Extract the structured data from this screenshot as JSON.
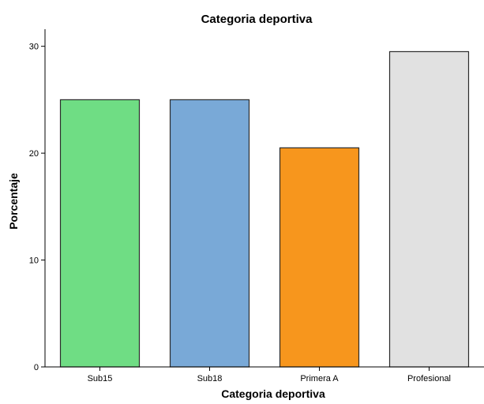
{
  "chart_data": {
    "type": "bar",
    "title": "Categoria deportiva",
    "xlabel": "Categoria deportiva",
    "ylabel": "Porcentaje",
    "categories": [
      "Sub15",
      "Sub18",
      "Primera A",
      "Profesional"
    ],
    "values": [
      25.0,
      25.0,
      20.5,
      29.5
    ],
    "colors": [
      "#6fdd84",
      "#79a9d7",
      "#f7961d",
      "#e1e1e1"
    ],
    "y_ticks": [
      "0",
      "10",
      "20",
      "30"
    ],
    "ylim": [
      0,
      31.6
    ],
    "grid": false,
    "legend": "none"
  }
}
